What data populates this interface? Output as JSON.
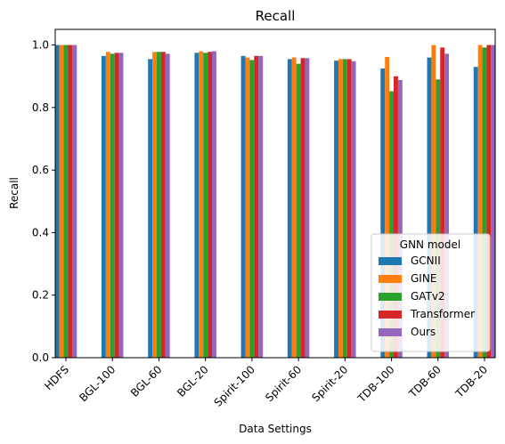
{
  "chart_data": {
    "type": "bar",
    "title": "Recall",
    "xlabel": "Data Settings",
    "ylabel": "Recall",
    "ylim": [
      0,
      1.05
    ],
    "yticks": [
      0.0,
      0.2,
      0.4,
      0.6,
      0.8,
      1.0
    ],
    "ytick_labels": [
      "0.0",
      "0.2",
      "0.4",
      "0.6",
      "0.8",
      "1.0"
    ],
    "categories": [
      "HDFS",
      "BGL-100",
      "BGL-60",
      "BGL-20",
      "Spirit-100",
      "Spirit-60",
      "Spirit-20",
      "TDB-100",
      "TDB-60",
      "TDB-20"
    ],
    "legend": {
      "title": "GNN model",
      "placement": "lower-right"
    },
    "series": [
      {
        "name": "GCNII",
        "color": "#1f77b4",
        "values": [
          1.0,
          0.965,
          0.955,
          0.975,
          0.965,
          0.955,
          0.95,
          0.925,
          0.96,
          0.93
        ]
      },
      {
        "name": "GINE",
        "color": "#ff7f0e",
        "values": [
          1.0,
          0.978,
          0.978,
          0.98,
          0.96,
          0.96,
          0.955,
          0.962,
          1.0,
          1.0
        ]
      },
      {
        "name": "GATv2",
        "color": "#2ca02c",
        "values": [
          1.0,
          0.972,
          0.978,
          0.975,
          0.952,
          0.94,
          0.955,
          0.852,
          0.89,
          0.992
        ]
      },
      {
        "name": "Transformer",
        "color": "#d62728",
        "values": [
          1.0,
          0.975,
          0.978,
          0.978,
          0.965,
          0.958,
          0.955,
          0.9,
          0.992,
          1.0
        ]
      },
      {
        "name": "Ours",
        "color": "#9467bd",
        "values": [
          1.0,
          0.975,
          0.972,
          0.98,
          0.965,
          0.958,
          0.948,
          0.888,
          0.972,
          1.0
        ]
      }
    ]
  }
}
